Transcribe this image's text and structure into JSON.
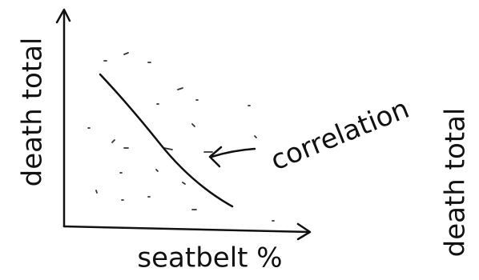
{
  "axes": {
    "y_label": "death total",
    "x_label": "seatbelt %"
  },
  "annotation": "correlation",
  "side_label": "death total"
}
